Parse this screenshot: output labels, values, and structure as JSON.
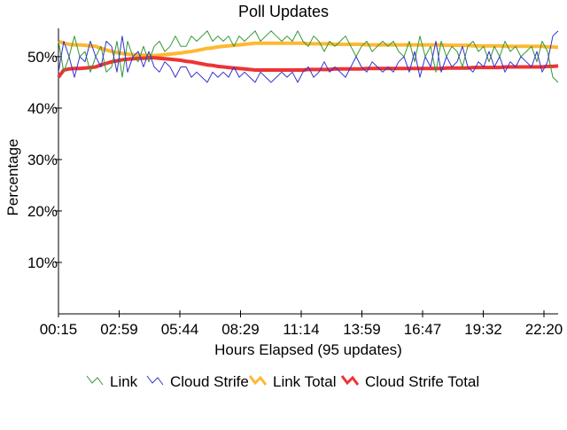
{
  "chart_data": {
    "type": "line",
    "title": "Poll Updates",
    "xlabel": "Hours Elapsed (95 updates)",
    "ylabel": "Percentage",
    "x_ticks": [
      "00:15",
      "02:59",
      "05:44",
      "08:29",
      "11:14",
      "13:59",
      "16:47",
      "19:32",
      "22:20"
    ],
    "y_ticks": [
      "10%",
      "20%",
      "30%",
      "40%",
      "50%"
    ],
    "y_tick_values": [
      10,
      20,
      30,
      40,
      50
    ],
    "ylim": [
      0,
      55.5
    ],
    "updates": 95,
    "grid": false,
    "legend_position": "bottom",
    "series": [
      {
        "name": "Link",
        "color": "#339933",
        "values": [
          53,
          47,
          50,
          54,
          50,
          51,
          47,
          50,
          52,
          47,
          48,
          53,
          46,
          53,
          50,
          49,
          52,
          49,
          52,
          53,
          51,
          52,
          54,
          52,
          52,
          54,
          53,
          54,
          55,
          53,
          54,
          53,
          54,
          52,
          54,
          53,
          54,
          55,
          53,
          54,
          55,
          54,
          53,
          54,
          53,
          55,
          53,
          52,
          54,
          53,
          51,
          53,
          52,
          53,
          54,
          52,
          50,
          52,
          53,
          51,
          52,
          53,
          52,
          53,
          51,
          50,
          53,
          49,
          54,
          50,
          52,
          47,
          53,
          50,
          52,
          51,
          48,
          52,
          53,
          51,
          52,
          49,
          52,
          50,
          53,
          51,
          52,
          50,
          51,
          52,
          49,
          53,
          51,
          46,
          45
        ]
      },
      {
        "name": "Cloud Strife",
        "color": "#3333cc",
        "values": [
          47,
          53,
          50,
          46,
          50,
          49,
          53,
          50,
          48,
          53,
          52,
          47,
          54,
          47,
          50,
          51,
          48,
          51,
          48,
          47,
          49,
          48,
          46,
          48,
          48,
          46,
          47,
          46,
          45,
          47,
          46,
          47,
          46,
          48,
          46,
          47,
          46,
          45,
          47,
          46,
          45,
          46,
          47,
          46,
          47,
          45,
          47,
          48,
          46,
          47,
          49,
          47,
          48,
          47,
          46,
          48,
          50,
          48,
          47,
          49,
          48,
          47,
          48,
          47,
          49,
          50,
          47,
          51,
          46,
          50,
          48,
          53,
          47,
          50,
          48,
          49,
          52,
          48,
          47,
          49,
          48,
          51,
          48,
          50,
          47,
          49,
          48,
          50,
          49,
          48,
          51,
          47,
          49,
          54,
          55
        ]
      },
      {
        "name": "Link Total",
        "color": "#ffb833",
        "values": [
          53,
          52.6,
          52.4,
          52.3,
          52.3,
          52.2,
          52.1,
          52,
          51.6,
          51.3,
          51,
          50.8,
          50.6,
          50.5,
          50.4,
          50.3,
          50.3,
          50.2,
          50.2,
          50.3,
          50.4,
          50.5,
          50.6,
          50.7,
          50.9,
          51,
          51.2,
          51.4,
          51.6,
          51.7,
          51.9,
          52,
          52.1,
          52.2,
          52.3,
          52.4,
          52.5,
          52.6,
          52.6,
          52.6,
          52.6,
          52.6,
          52.6,
          52.6,
          52.6,
          52.6,
          52.6,
          52.5,
          52.5,
          52.5,
          52.5,
          52.5,
          52.4,
          52.4,
          52.4,
          52.4,
          52.4,
          52.4,
          52.3,
          52.3,
          52.3,
          52.3,
          52.3,
          52.3,
          52.3,
          52.3,
          52.3,
          52.3,
          52.3,
          52.3,
          52.3,
          52.3,
          52.3,
          52.2,
          52.2,
          52.2,
          52.2,
          52.2,
          52.1,
          52.1,
          52.1,
          52.1,
          52.1,
          52.1,
          52,
          52,
          52,
          52,
          52,
          52,
          52,
          52,
          51.9,
          51.9,
          51.8
        ]
      },
      {
        "name": "Cloud Strife Total",
        "color": "#ee3333",
        "values": [
          46,
          47.4,
          47.6,
          47.7,
          47.7,
          47.8,
          47.9,
          48,
          48.4,
          48.7,
          49,
          49.2,
          49.4,
          49.5,
          49.6,
          49.7,
          49.7,
          49.8,
          49.8,
          49.7,
          49.6,
          49.5,
          49.4,
          49.3,
          49.1,
          49,
          48.8,
          48.6,
          48.4,
          48.3,
          48.1,
          48,
          47.9,
          47.8,
          47.7,
          47.6,
          47.5,
          47.4,
          47.4,
          47.4,
          47.4,
          47.4,
          47.4,
          47.4,
          47.4,
          47.4,
          47.4,
          47.5,
          47.5,
          47.5,
          47.5,
          47.5,
          47.6,
          47.6,
          47.6,
          47.6,
          47.6,
          47.6,
          47.7,
          47.7,
          47.7,
          47.7,
          47.7,
          47.7,
          47.7,
          47.7,
          47.7,
          47.7,
          47.7,
          47.7,
          47.7,
          47.7,
          47.7,
          47.8,
          47.8,
          47.8,
          47.8,
          47.8,
          47.9,
          47.9,
          47.9,
          47.9,
          47.9,
          47.9,
          48,
          48,
          48,
          48,
          48,
          48,
          48,
          48,
          48.1,
          48.1,
          48.2
        ]
      }
    ]
  }
}
